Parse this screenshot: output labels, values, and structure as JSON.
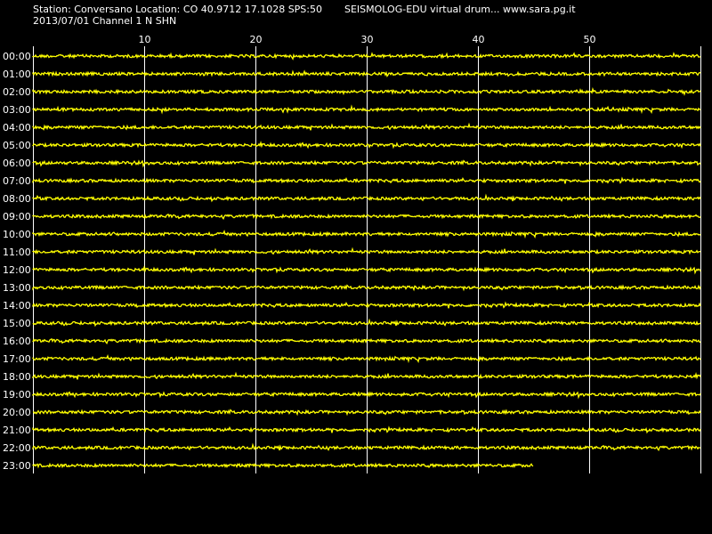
{
  "header": {
    "station_line": "Station: Conversano Location: CO 40.9712 17.1028 SPS:50",
    "app_line": "SEISMOLOG-EDU virtual drum... www.sara.pg.it",
    "date_line": "2013/07/01  Channel 1 N SHN"
  },
  "chart_data": {
    "type": "line",
    "title": "",
    "xlabel": "",
    "ylabel": "",
    "x_unit": "minutes",
    "xlim": [
      0,
      60
    ],
    "x_ticks": [
      10,
      20,
      30,
      40,
      50
    ],
    "grid": true,
    "rows": [
      {
        "label": "00:00",
        "end_minute": 60
      },
      {
        "label": "01:00",
        "end_minute": 60
      },
      {
        "label": "02:00",
        "end_minute": 60
      },
      {
        "label": "03:00",
        "end_minute": 60
      },
      {
        "label": "04:00",
        "end_minute": 60
      },
      {
        "label": "05:00",
        "end_minute": 60
      },
      {
        "label": "06:00",
        "end_minute": 60
      },
      {
        "label": "07:00",
        "end_minute": 60
      },
      {
        "label": "08:00",
        "end_minute": 60
      },
      {
        "label": "09:00",
        "end_minute": 60
      },
      {
        "label": "10:00",
        "end_minute": 60
      },
      {
        "label": "11:00",
        "end_minute": 60
      },
      {
        "label": "12:00",
        "end_minute": 60
      },
      {
        "label": "13:00",
        "end_minute": 60
      },
      {
        "label": "14:00",
        "end_minute": 60
      },
      {
        "label": "15:00",
        "end_minute": 60
      },
      {
        "label": "16:00",
        "end_minute": 60
      },
      {
        "label": "17:00",
        "end_minute": 60
      },
      {
        "label": "18:00",
        "end_minute": 60
      },
      {
        "label": "19:00",
        "end_minute": 60
      },
      {
        "label": "20:00",
        "end_minute": 60
      },
      {
        "label": "21:00",
        "end_minute": 60
      },
      {
        "label": "22:00",
        "end_minute": 60
      },
      {
        "label": "23:00",
        "end_minute": 45
      }
    ],
    "colors": {
      "trace": "#ffff00",
      "grid": "#ffffff",
      "background": "#000000",
      "text": "#ffffff"
    }
  }
}
